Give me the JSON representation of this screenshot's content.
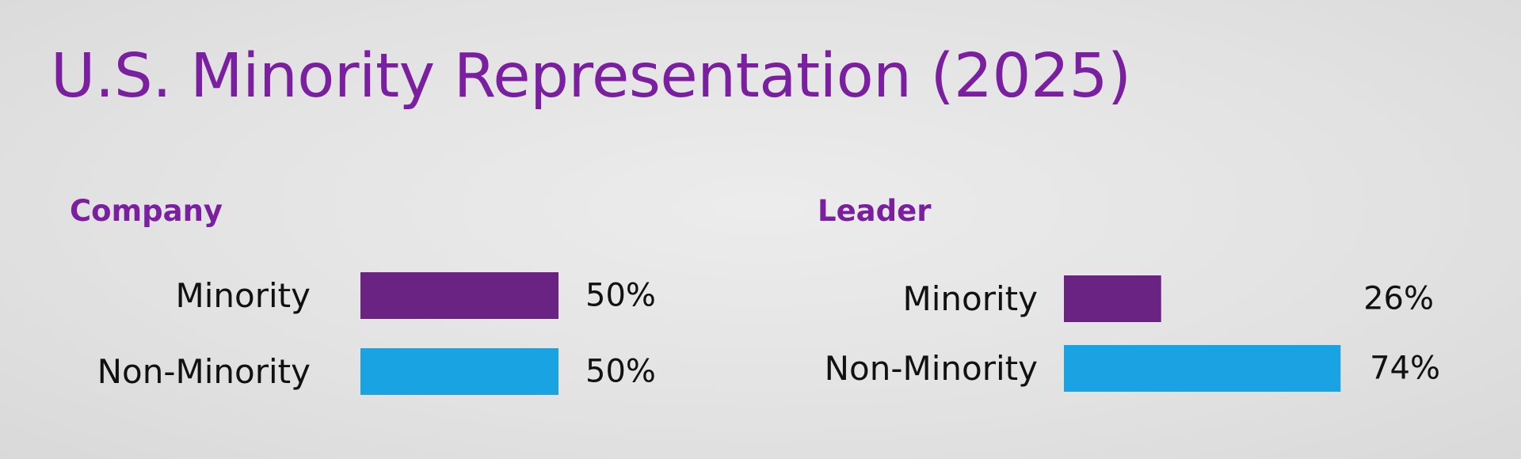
{
  "title": "U.S. Minority Representation (2025)",
  "colors": {
    "title": "#7a1fa0",
    "heading": "#7a1fa0",
    "minority": "#6a2382",
    "non_minority": "#19a3e2"
  },
  "chart_data": [
    {
      "type": "bar",
      "orientation": "horizontal",
      "title": "Company",
      "categories": [
        "Minority",
        "Non-Minority"
      ],
      "values": [
        50,
        50
      ],
      "value_labels": [
        "50%",
        "50%"
      ],
      "colors": [
        "#6a2382",
        "#19a3e2"
      ],
      "xlim": [
        0,
        100
      ],
      "grid": false
    },
    {
      "type": "bar",
      "orientation": "horizontal",
      "title": "Leader",
      "categories": [
        "Minority",
        "Non-Minority"
      ],
      "values": [
        26,
        74
      ],
      "value_labels": [
        "26%",
        "74%"
      ],
      "colors": [
        "#6a2382",
        "#19a3e2"
      ],
      "xlim": [
        0,
        100
      ],
      "grid": false
    }
  ]
}
